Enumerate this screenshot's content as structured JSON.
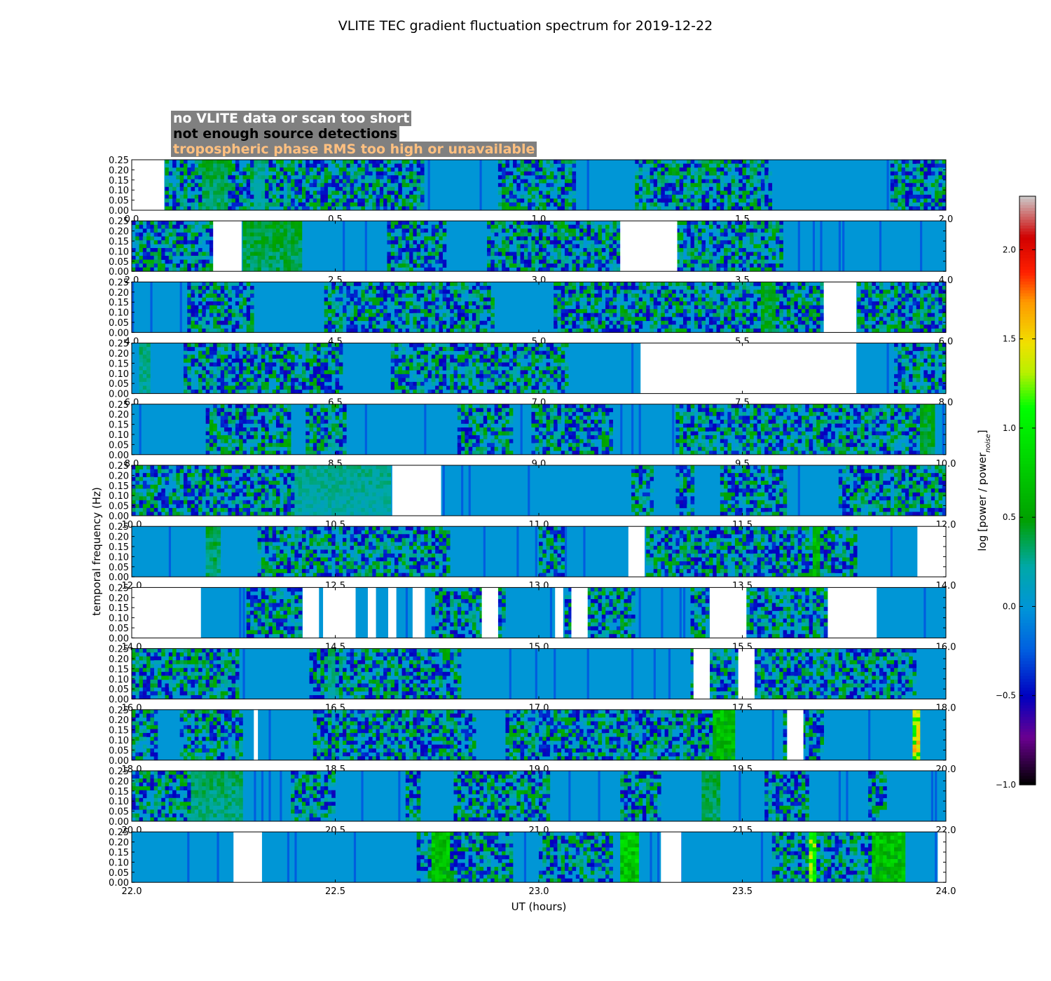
{
  "chart_data": {
    "type": "heatmap",
    "title": "VLITE TEC gradient fluctuation spectrum for 2019-12-22",
    "xlabel": "UT (hours)",
    "ylabel": "temporal frequency (Hz)",
    "ylim": [
      0,
      0.25
    ],
    "yticks": [
      "0.00",
      "0.05",
      "0.10",
      "0.15",
      "0.20",
      "0.25"
    ],
    "panels": [
      {
        "xlim": [
          0,
          2
        ],
        "xticks": [
          "0.0",
          "0.5",
          "1.0",
          "1.5",
          "2.0"
        ],
        "gaps": [
          [
            0.0,
            0.08
          ]
        ],
        "hot": [
          [
            0.17,
            0.24,
            0.5
          ],
          [
            0.3,
            0.33,
            0.35
          ]
        ]
      },
      {
        "xlim": [
          2,
          4
        ],
        "xticks": [
          "2.0",
          "2.5",
          "3.0",
          "3.5",
          "4.0"
        ],
        "gaps": [
          [
            2.2,
            2.27
          ],
          [
            3.2,
            3.34
          ]
        ],
        "hot": [
          [
            2.27,
            2.42,
            0.55
          ]
        ]
      },
      {
        "xlim": [
          4,
          6
        ],
        "xticks": [
          "4.0",
          "4.5",
          "5.0",
          "5.5",
          "6.0"
        ],
        "gaps": [
          [
            5.7,
            5.78
          ]
        ],
        "hot": [
          [
            5.55,
            5.58,
            0.6
          ]
        ]
      },
      {
        "xlim": [
          6,
          8
        ],
        "xticks": [
          "6.0",
          "6.5",
          "7.0",
          "7.5",
          "8.0"
        ],
        "gaps": [
          [
            7.25,
            7.78
          ]
        ],
        "hot": [
          [
            6.02,
            6.05,
            0.4
          ]
        ]
      },
      {
        "xlim": [
          8,
          10
        ],
        "xticks": [
          "8.0",
          "8.5",
          "9.0",
          "9.5",
          "10.0"
        ],
        "gaps": [],
        "hot": [
          [
            9.94,
            9.97,
            0.6
          ]
        ]
      },
      {
        "xlim": [
          10,
          12
        ],
        "xticks": [
          "10.0",
          "10.5",
          "11.0",
          "11.5",
          "12.0"
        ],
        "gaps": [
          [
            10.64,
            10.76
          ]
        ],
        "hot": [
          [
            10.4,
            10.64,
            0.35
          ]
        ]
      },
      {
        "xlim": [
          12,
          14
        ],
        "xticks": [
          "12.0",
          "12.5",
          "13.0",
          "13.5",
          "14.0"
        ],
        "gaps": [
          [
            13.22,
            13.26
          ],
          [
            13.93,
            14.0
          ]
        ],
        "hot": [
          [
            12.18,
            12.22,
            0.5
          ],
          [
            13.67,
            13.69,
            0.8
          ]
        ]
      },
      {
        "xlim": [
          14,
          16
        ],
        "xticks": [
          "14.0",
          "14.5",
          "15.0",
          "15.5",
          "16.0"
        ],
        "gaps": [
          [
            14.0,
            14.17
          ],
          [
            14.42,
            14.46
          ],
          [
            14.47,
            14.55
          ],
          [
            14.58,
            14.6
          ],
          [
            14.63,
            14.65
          ],
          [
            14.69,
            14.72
          ],
          [
            14.86,
            14.9
          ],
          [
            15.04,
            15.06
          ],
          [
            15.08,
            15.12
          ],
          [
            15.42,
            15.51
          ],
          [
            15.71,
            15.83
          ]
        ],
        "hot": []
      },
      {
        "xlim": [
          16,
          18
        ],
        "xticks": [
          "16.0",
          "16.5",
          "17.0",
          "17.5",
          "18.0"
        ],
        "gaps": [
          [
            17.38,
            17.42
          ],
          [
            17.49,
            17.53
          ]
        ],
        "hot": [
          [
            16.48,
            16.5,
            0.4
          ]
        ]
      },
      {
        "xlim": [
          18,
          20
        ],
        "xticks": [
          "18.0",
          "18.5",
          "19.0",
          "19.5",
          "20.0"
        ],
        "gaps": [
          [
            18.3,
            18.31
          ],
          [
            19.61,
            19.65
          ]
        ],
        "hot": [
          [
            19.43,
            19.48,
            0.85
          ],
          [
            19.92,
            19.94,
            1.7
          ]
        ]
      },
      {
        "xlim": [
          20,
          22
        ],
        "xticks": [
          "20.0",
          "20.5",
          "21.0",
          "21.5",
          "22.0"
        ],
        "gaps": [],
        "hot": [
          [
            20.15,
            20.27,
            0.45
          ],
          [
            21.4,
            21.45,
            0.5
          ]
        ]
      },
      {
        "xlim": [
          22,
          24
        ],
        "xticks": [
          "22.0",
          "22.5",
          "23.0",
          "23.5",
          "24.0"
        ],
        "gaps": [
          [
            22.25,
            22.32
          ],
          [
            23.3,
            23.35
          ],
          [
            23.98,
            24.0
          ]
        ],
        "hot": [
          [
            22.74,
            22.78,
            0.9
          ],
          [
            23.2,
            23.25,
            1.0
          ],
          [
            23.66,
            23.68,
            1.4
          ],
          [
            23.82,
            23.9,
            0.9
          ]
        ]
      }
    ],
    "colorbar": {
      "label": "log [power / power",
      "label_sub": "noise",
      "label_end": "]",
      "range": [
        -1.0,
        2.3
      ],
      "ticks": [
        "−1.0",
        "−0.5",
        "0.0",
        "0.5",
        "1.0",
        "1.5",
        "2.0"
      ],
      "colormap": "nipy_spectral"
    },
    "legend": [
      {
        "label": "no VLITE data or scan too short",
        "color": "#ffffff"
      },
      {
        "label": "not enough source detections",
        "color": "#000000"
      },
      {
        "label": "tropospheric phase RMS too high or unavailable",
        "color": "#ffc080"
      }
    ],
    "background_level": 0.0
  }
}
